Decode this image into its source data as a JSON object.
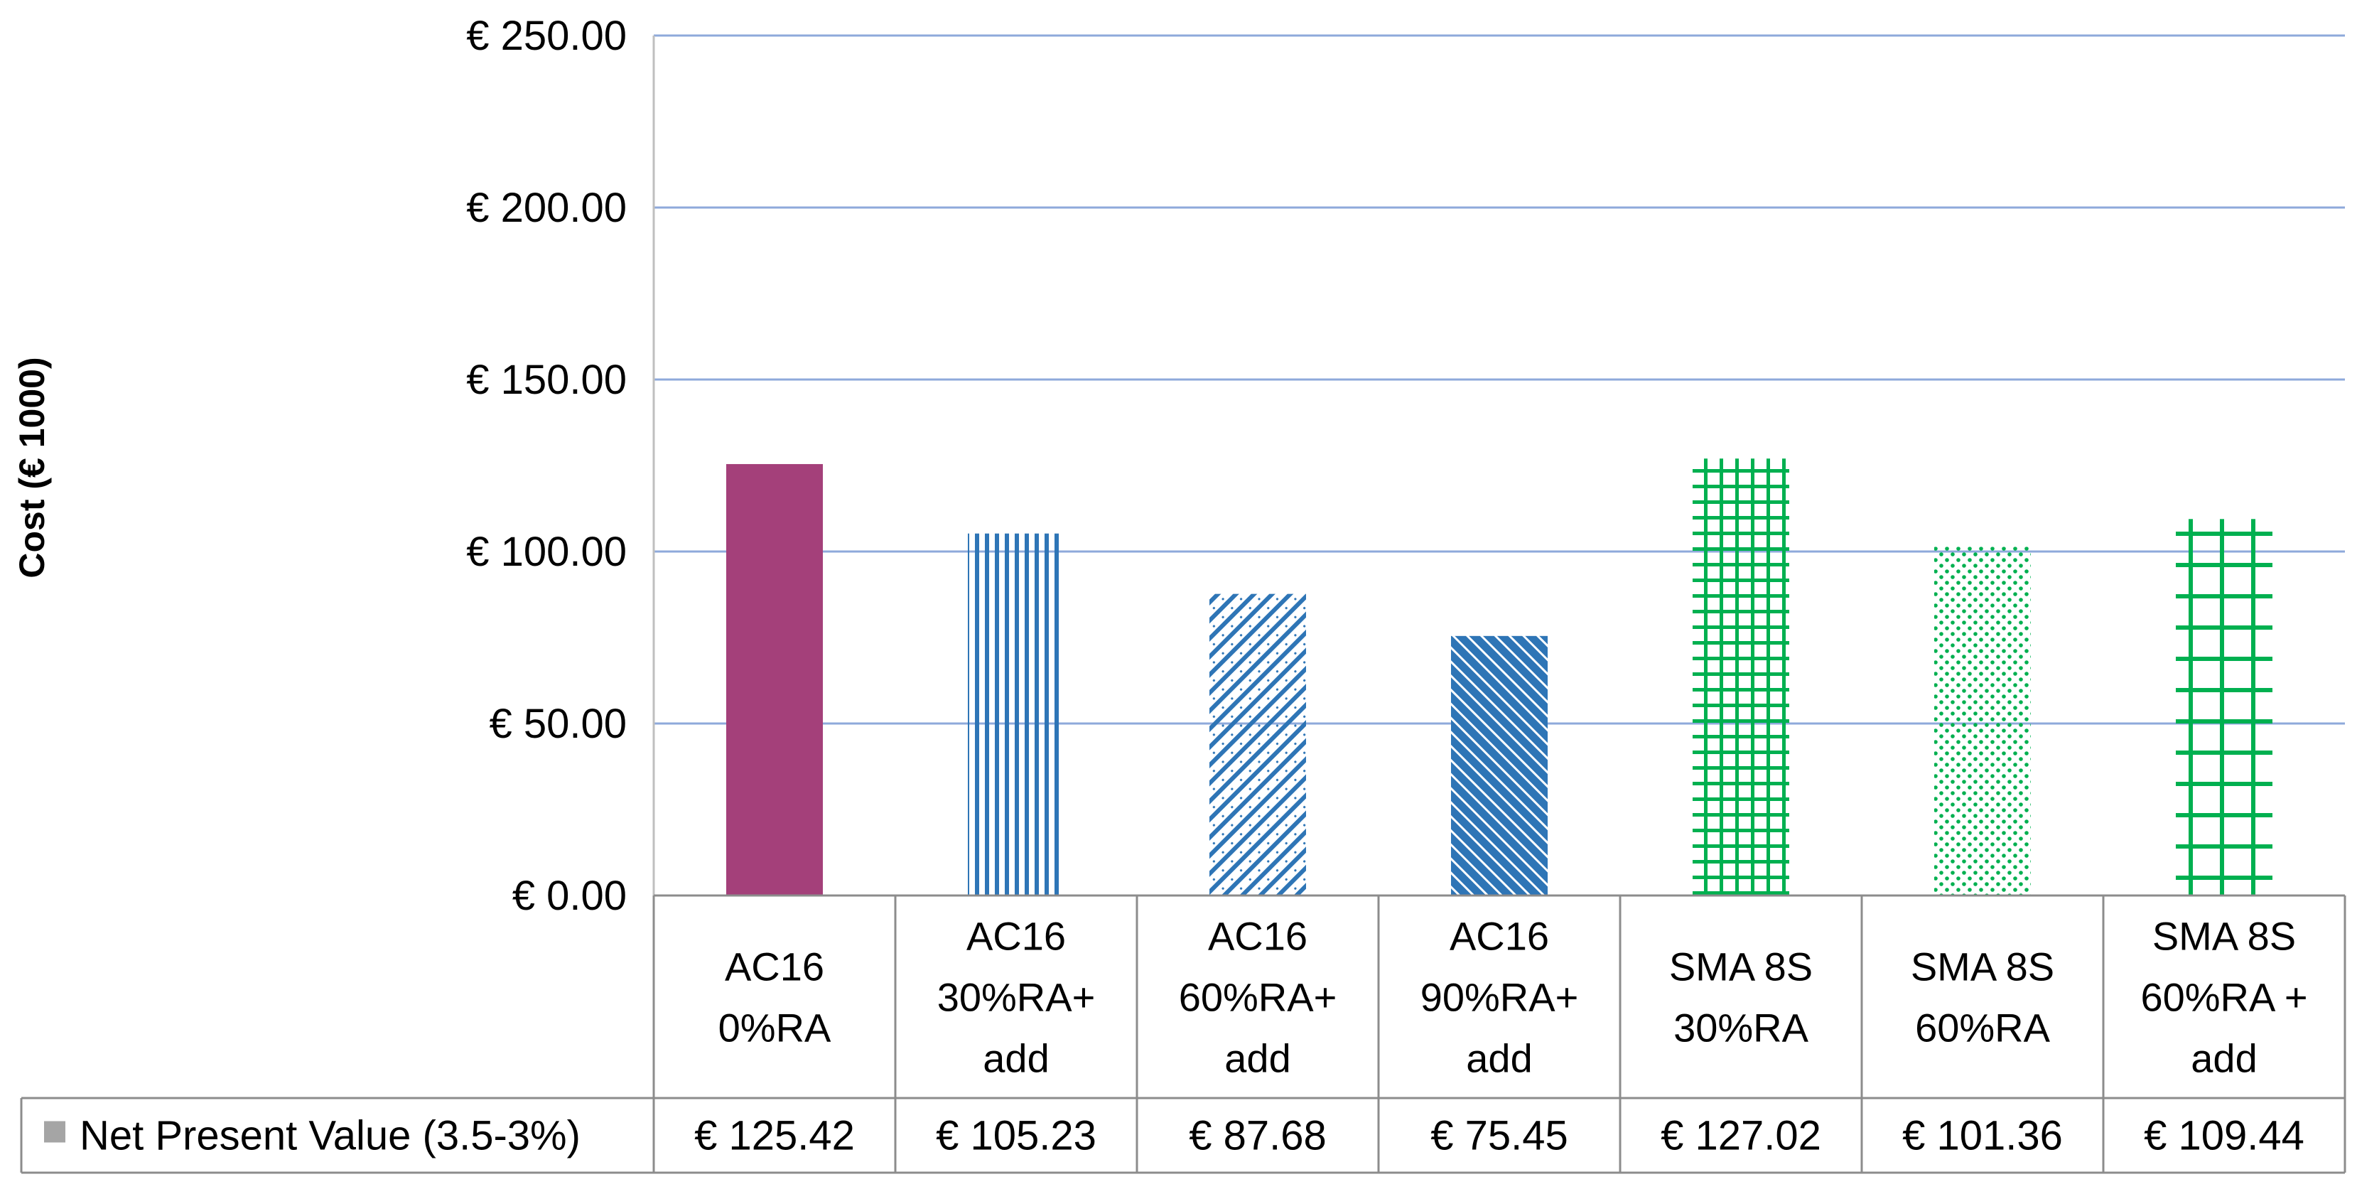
{
  "chart_data": {
    "type": "bar",
    "title": "",
    "xlabel": "",
    "ylabel": "Cost (€ 1000)",
    "ylim": [
      0,
      250
    ],
    "yticks": [
      0,
      50,
      100,
      150,
      200,
      250
    ],
    "ytick_labels": [
      "€ 0.00",
      "€ 50.00",
      "€ 100.00",
      "€ 150.00",
      "€ 200.00",
      "€ 250.00"
    ],
    "categories": [
      [
        "AC16",
        "0%RA"
      ],
      [
        "AC16",
        "30%RA+",
        "add"
      ],
      [
        "AC16",
        "60%RA+",
        "add"
      ],
      [
        "AC16",
        "90%RA+",
        "add"
      ],
      [
        "SMA 8S",
        "30%RA"
      ],
      [
        "SMA 8S",
        "60%RA"
      ],
      [
        "SMA 8S",
        "60%RA +",
        "add"
      ]
    ],
    "series": [
      {
        "name": "Net Present Value (3.5-3%)",
        "values": [
          125.42,
          105.23,
          87.68,
          75.45,
          127.02,
          101.36,
          109.44
        ],
        "value_labels": [
          "€ 125.42",
          "€ 105.23",
          "€ 87.68",
          "€ 75.45",
          "€ 127.02",
          "€ 101.36",
          "€ 109.44"
        ]
      }
    ],
    "bar_styles": [
      {
        "pattern": "solid",
        "color": "#A4407A"
      },
      {
        "pattern": "vertical-lines",
        "color": "#2E75B6"
      },
      {
        "pattern": "light-diagonal",
        "color": "#2E75B6"
      },
      {
        "pattern": "dense-diagonal",
        "color": "#2E75B6"
      },
      {
        "pattern": "dense-grid",
        "color": "#00B050"
      },
      {
        "pattern": "dots",
        "color": "#00B050"
      },
      {
        "pattern": "wide-grid",
        "color": "#00B050"
      }
    ],
    "legend_swatch_color": "#A5A5A5",
    "gridline_color": "#8EA9DB",
    "data_table": true
  }
}
